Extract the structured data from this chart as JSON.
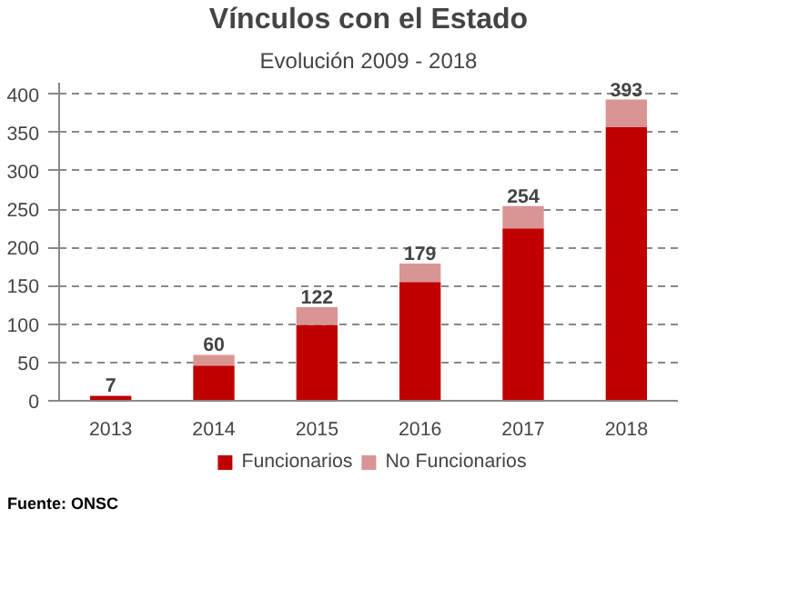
{
  "chart_data": {
    "type": "bar",
    "title": "Vínculos con el Estado",
    "subtitle": "Evolución 2009 - 2018",
    "categories": [
      "2013",
      "2014",
      "2015",
      "2016",
      "2017",
      "2018"
    ],
    "stacked": true,
    "series": [
      {
        "name": "Funcionarios",
        "color": "#c00000",
        "values": [
          6,
          46,
          99,
          155,
          225,
          357
        ]
      },
      {
        "name": "No Funcionarios",
        "color": "#d99594",
        "values": [
          1,
          14,
          23,
          24,
          29,
          36
        ]
      }
    ],
    "totals": [
      "7",
      "60",
      "122",
      "179",
      "254",
      "393"
    ],
    "ylim": [
      0,
      415
    ],
    "yticks": [
      0,
      50,
      100,
      150,
      200,
      250,
      300,
      350,
      400
    ],
    "grid": "y",
    "legend": "bottom",
    "annotations": [
      "Fuente: ONSC"
    ]
  }
}
